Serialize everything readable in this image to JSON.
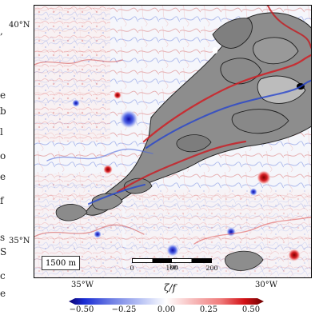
{
  "figure": {
    "depth_label": "1500 m",
    "latitude_labels": {
      "north": "40°N",
      "south": "35°N"
    },
    "longitude_labels": {
      "west": "35°W",
      "east": "30°W"
    },
    "scale_bar": {
      "start": "0",
      "middle": "100",
      "end": "200",
      "unit": "km"
    },
    "colorbar": {
      "label": "ζ/f",
      "ticks": [
        "−0.50",
        "−0.25",
        "0.00",
        "0.25",
        "0.50"
      ],
      "range": [
        -0.5,
        0.5
      ],
      "colors": {
        "negative_extreme": "#0b006f",
        "negative": "#1a2dd4",
        "zero": "#ffffff",
        "positive": "#d31116",
        "positive_extreme": "#6d0000"
      }
    },
    "left_fragment_text": [
      ",",
      "e",
      "b",
      "l",
      "o",
      "e",
      "f",
      "s",
      "S",
      "c",
      "e"
    ]
  }
}
